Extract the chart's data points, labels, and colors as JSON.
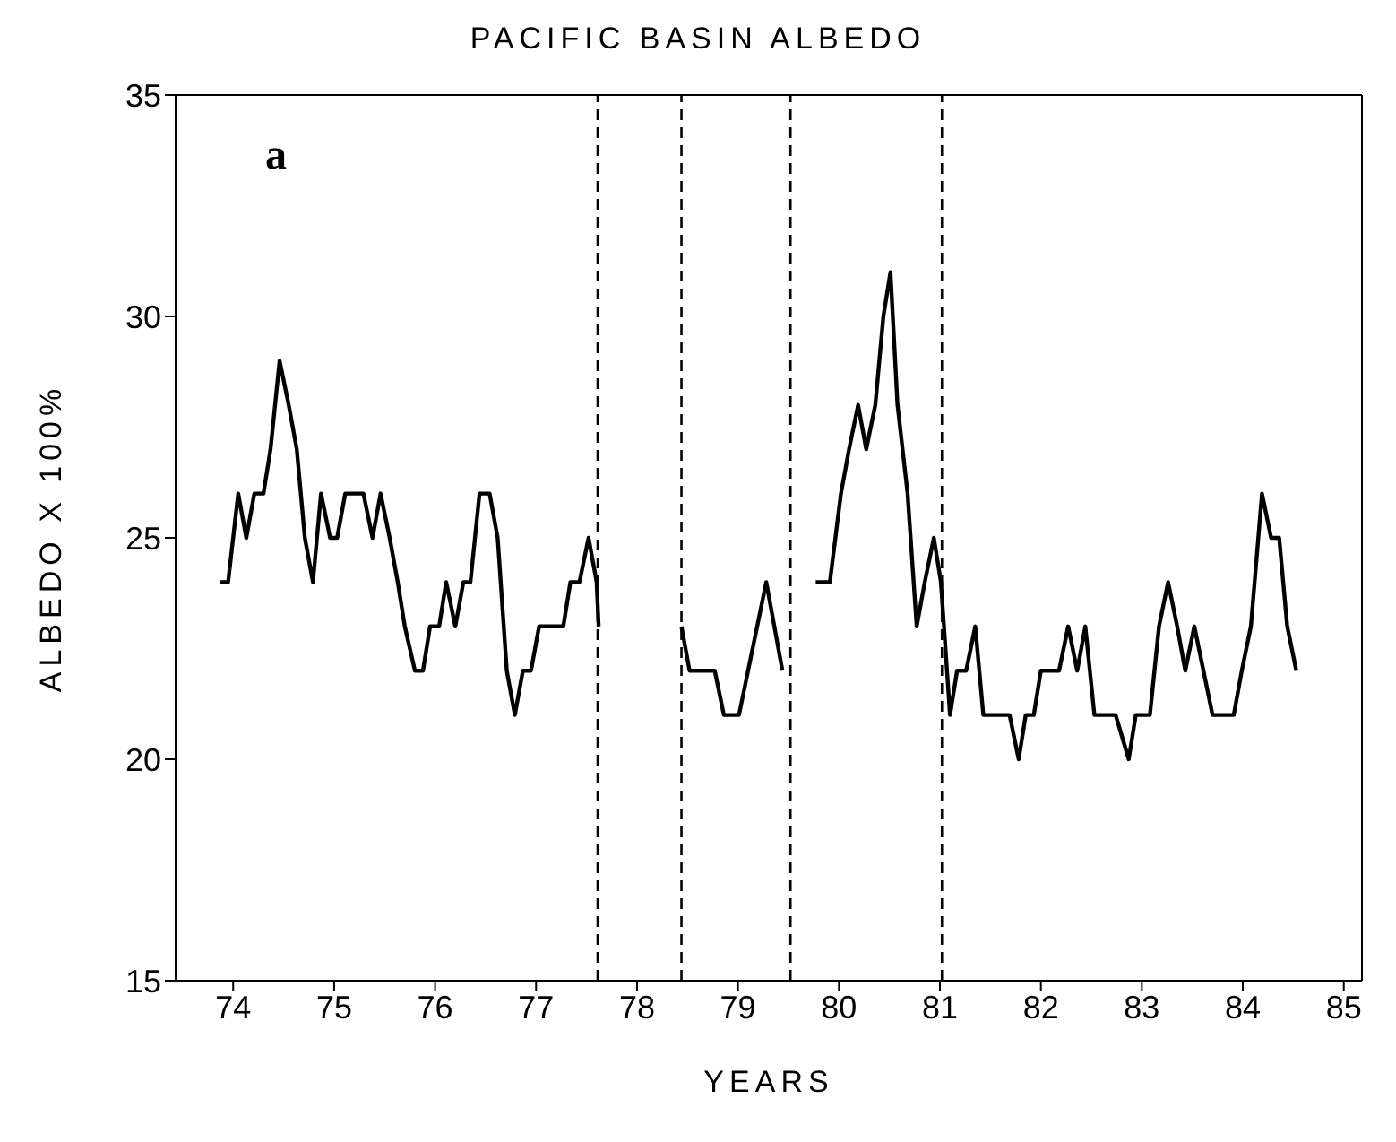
{
  "chart_data": {
    "type": "line",
    "title": "PACIFIC BASIN ALBEDO",
    "xlabel": "YEARS",
    "ylabel": "ALBEDO X 100%",
    "annotations": [
      "a"
    ],
    "x": [
      73.87,
      73.95,
      74.05,
      74.13,
      74.21,
      74.3,
      74.37,
      74.46,
      74.55,
      74.63,
      74.71,
      74.79,
      74.87,
      74.96,
      75.03,
      75.11,
      75.29,
      75.38,
      75.46,
      75.55,
      75.63,
      75.7,
      75.8,
      75.88,
      75.95,
      76.04,
      76.11,
      76.2,
      76.28,
      76.35,
      76.44,
      76.54,
      76.62,
      76.71,
      76.79,
      76.87,
      76.95,
      77.03,
      77.27,
      77.34,
      77.43,
      77.52,
      77.6,
      77.62,
      78.0,
      78.44,
      78.52,
      78.77,
      78.86,
      79.01,
      79.28,
      79.44,
      79.6,
      79.77,
      79.91,
      80.02,
      80.1,
      80.19,
      80.27,
      80.36,
      80.44,
      80.51,
      80.58,
      80.68,
      80.77,
      80.85,
      80.94,
      81.01,
      81.1,
      81.17,
      81.26,
      81.35,
      81.43,
      81.69,
      81.78,
      81.85,
      81.93,
      82.0,
      82.18,
      82.27,
      82.36,
      82.44,
      82.53,
      82.74,
      82.87,
      82.94,
      83.08,
      83.17,
      83.26,
      83.35,
      83.43,
      83.52,
      83.61,
      83.7,
      83.91,
      83.99,
      84.08,
      84.19,
      84.28,
      84.36,
      84.44,
      84.53
    ],
    "series": [
      {
        "color": "#000000",
        "values": [
          24,
          24,
          26,
          25,
          26,
          26,
          27,
          29,
          28,
          27,
          25,
          24,
          26,
          25,
          25,
          26,
          26,
          25,
          26,
          25,
          24,
          23,
          22,
          22,
          23,
          23,
          24,
          23,
          24,
          24,
          26,
          26,
          25,
          22,
          21,
          22,
          22,
          23,
          23,
          24,
          24,
          25,
          24,
          23,
          null,
          23,
          22,
          22,
          21,
          21,
          24,
          22,
          null,
          24,
          24,
          26,
          27,
          28,
          27,
          28,
          30,
          31,
          28,
          26,
          23,
          24,
          25,
          24,
          21,
          22,
          22,
          23,
          21,
          21,
          20,
          21,
          21,
          22,
          22,
          23,
          22,
          23,
          21,
          21,
          20,
          21,
          21,
          23,
          24,
          23,
          22,
          23,
          22,
          21,
          21,
          22,
          23,
          26,
          25,
          25,
          23,
          22
        ]
      }
    ],
    "xlim": [
      73.43,
      85.18
    ],
    "xticks": [
      74,
      75,
      76,
      77,
      78,
      79,
      80,
      81,
      82,
      83,
      84,
      85
    ],
    "ylim": [
      15,
      35
    ],
    "yticks": [
      15,
      20,
      25,
      30,
      35
    ],
    "ref_lines": [
      {
        "axis": "x",
        "value": 77.61,
        "color": "#000000",
        "line_style": "dashed"
      },
      {
        "axis": "x",
        "value": 78.44,
        "color": "#000000",
        "line_style": "dashed"
      },
      {
        "axis": "x",
        "value": 79.52,
        "color": "#000000",
        "line_style": "dashed"
      },
      {
        "axis": "x",
        "value": 81.02,
        "color": "#000000",
        "line_style": "dashed"
      }
    ],
    "grid": false,
    "legend": false,
    "marker": "none",
    "line_style": "solid"
  }
}
